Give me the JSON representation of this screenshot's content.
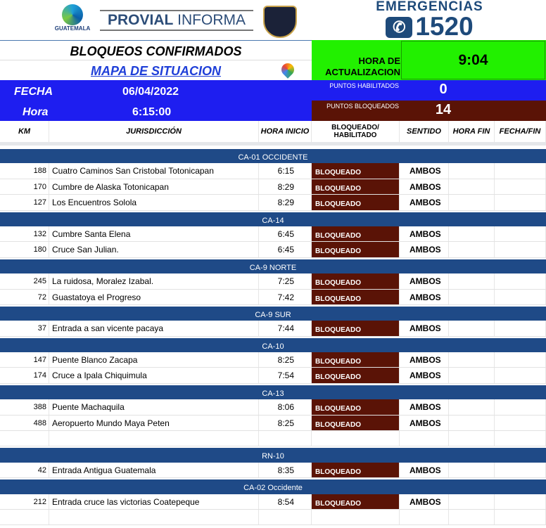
{
  "header": {
    "logo_text": "GUATEMALA",
    "provial_bold": "PROVIAL",
    "provial_light": "INFORMA",
    "emergencias": "EMERGENCIAS",
    "emergency_number": "1520",
    "title": "BLOQUEOS CONFIRMADOS",
    "map_link": "MAPA DE SITUACION",
    "update_label": "HORA DE ACTUALIZACION",
    "update_time": "9:04"
  },
  "info": {
    "fecha_label": "FECHA",
    "fecha": "06/04/2022",
    "hora_label": "Hora",
    "hora": "6:15:00",
    "habilitados_label": "PUNTOS HABILITADOS",
    "habilitados": "0",
    "bloqueados_label": "PUNTOS BLOQUEADOS",
    "bloqueados": "14"
  },
  "colors": {
    "section": "#1f4a87",
    "blocked": "#5a1306",
    "update": "#22f000",
    "info": "#1e1ef0"
  },
  "columns": [
    "KM",
    "JURISDICCIÓN",
    "HORA INICIO",
    "BLOQUEADO/ HABILITADO",
    "SENTIDO",
    "HORA FIN",
    "FECHA/FIN"
  ],
  "sections": [
    {
      "name": "CA-01 OCCIDENTE",
      "rows": [
        [
          "188",
          "Cuatro Caminos San Cristobal Totonicapan",
          "6:15",
          "BLOQUEADO",
          "AMBOS"
        ],
        [
          "170",
          "Cumbre de Alaska Totonicapan",
          "8:29",
          "BLOQUEADO",
          "AMBOS"
        ],
        [
          "127",
          "Los Encuentros Solola",
          "8:29",
          "BLOQUEADO",
          "AMBOS"
        ]
      ]
    },
    {
      "name": "CA-14",
      "rows": [
        [
          "132",
          "Cumbre Santa Elena",
          "6:45",
          "BLOQUEADO",
          "AMBOS"
        ],
        [
          "180",
          "Cruce San Julian.",
          "6:45",
          "BLOQUEADO",
          "AMBOS"
        ]
      ]
    },
    {
      "name": "CA-9 NORTE",
      "rows": [
        [
          "245",
          "La ruidosa, Moralez Izabal.",
          "7:25",
          "BLOQUEADO",
          "AMBOS"
        ],
        [
          "72",
          "Guastatoya el Progreso",
          "7:42",
          "BLOQUEADO",
          "AMBOS"
        ]
      ]
    },
    {
      "name": "CA-9  SUR",
      "rows": [
        [
          "37",
          "Entrada a san vicente pacaya",
          "7:44",
          "BLOQUEADO",
          "AMBOS"
        ]
      ]
    },
    {
      "name": "CA-10",
      "rows": [
        [
          "147",
          "Puente Blanco Zacapa",
          "8:25",
          "BLOQUEADO",
          "AMBOS"
        ],
        [
          "174",
          "Cruce a Ipala Chiquimula",
          "7:54",
          "BLOQUEADO",
          "AMBOS"
        ]
      ]
    },
    {
      "name": "CA-13",
      "rows": [
        [
          "388",
          "Puente Machaquila",
          "8:06",
          "BLOQUEADO",
          "AMBOS"
        ],
        [
          "488",
          "Aeropuerto Mundo Maya Peten",
          "8:25",
          "BLOQUEADO",
          "AMBOS"
        ],
        [
          "",
          "",
          "",
          "",
          ""
        ]
      ]
    },
    {
      "name": "RN-10",
      "rows": [
        [
          "42",
          "Entrada Antigua Guatemala",
          "8:35",
          "BLOQUEADO",
          "AMBOS"
        ]
      ]
    },
    {
      "name": "CA-02 Occidente",
      "rows": [
        [
          "212",
          "Entrada cruce las victorias Coatepeque",
          "8:54",
          "BLOQUEADO",
          "AMBOS"
        ],
        [
          "",
          "",
          "",
          "",
          ""
        ]
      ]
    }
  ]
}
